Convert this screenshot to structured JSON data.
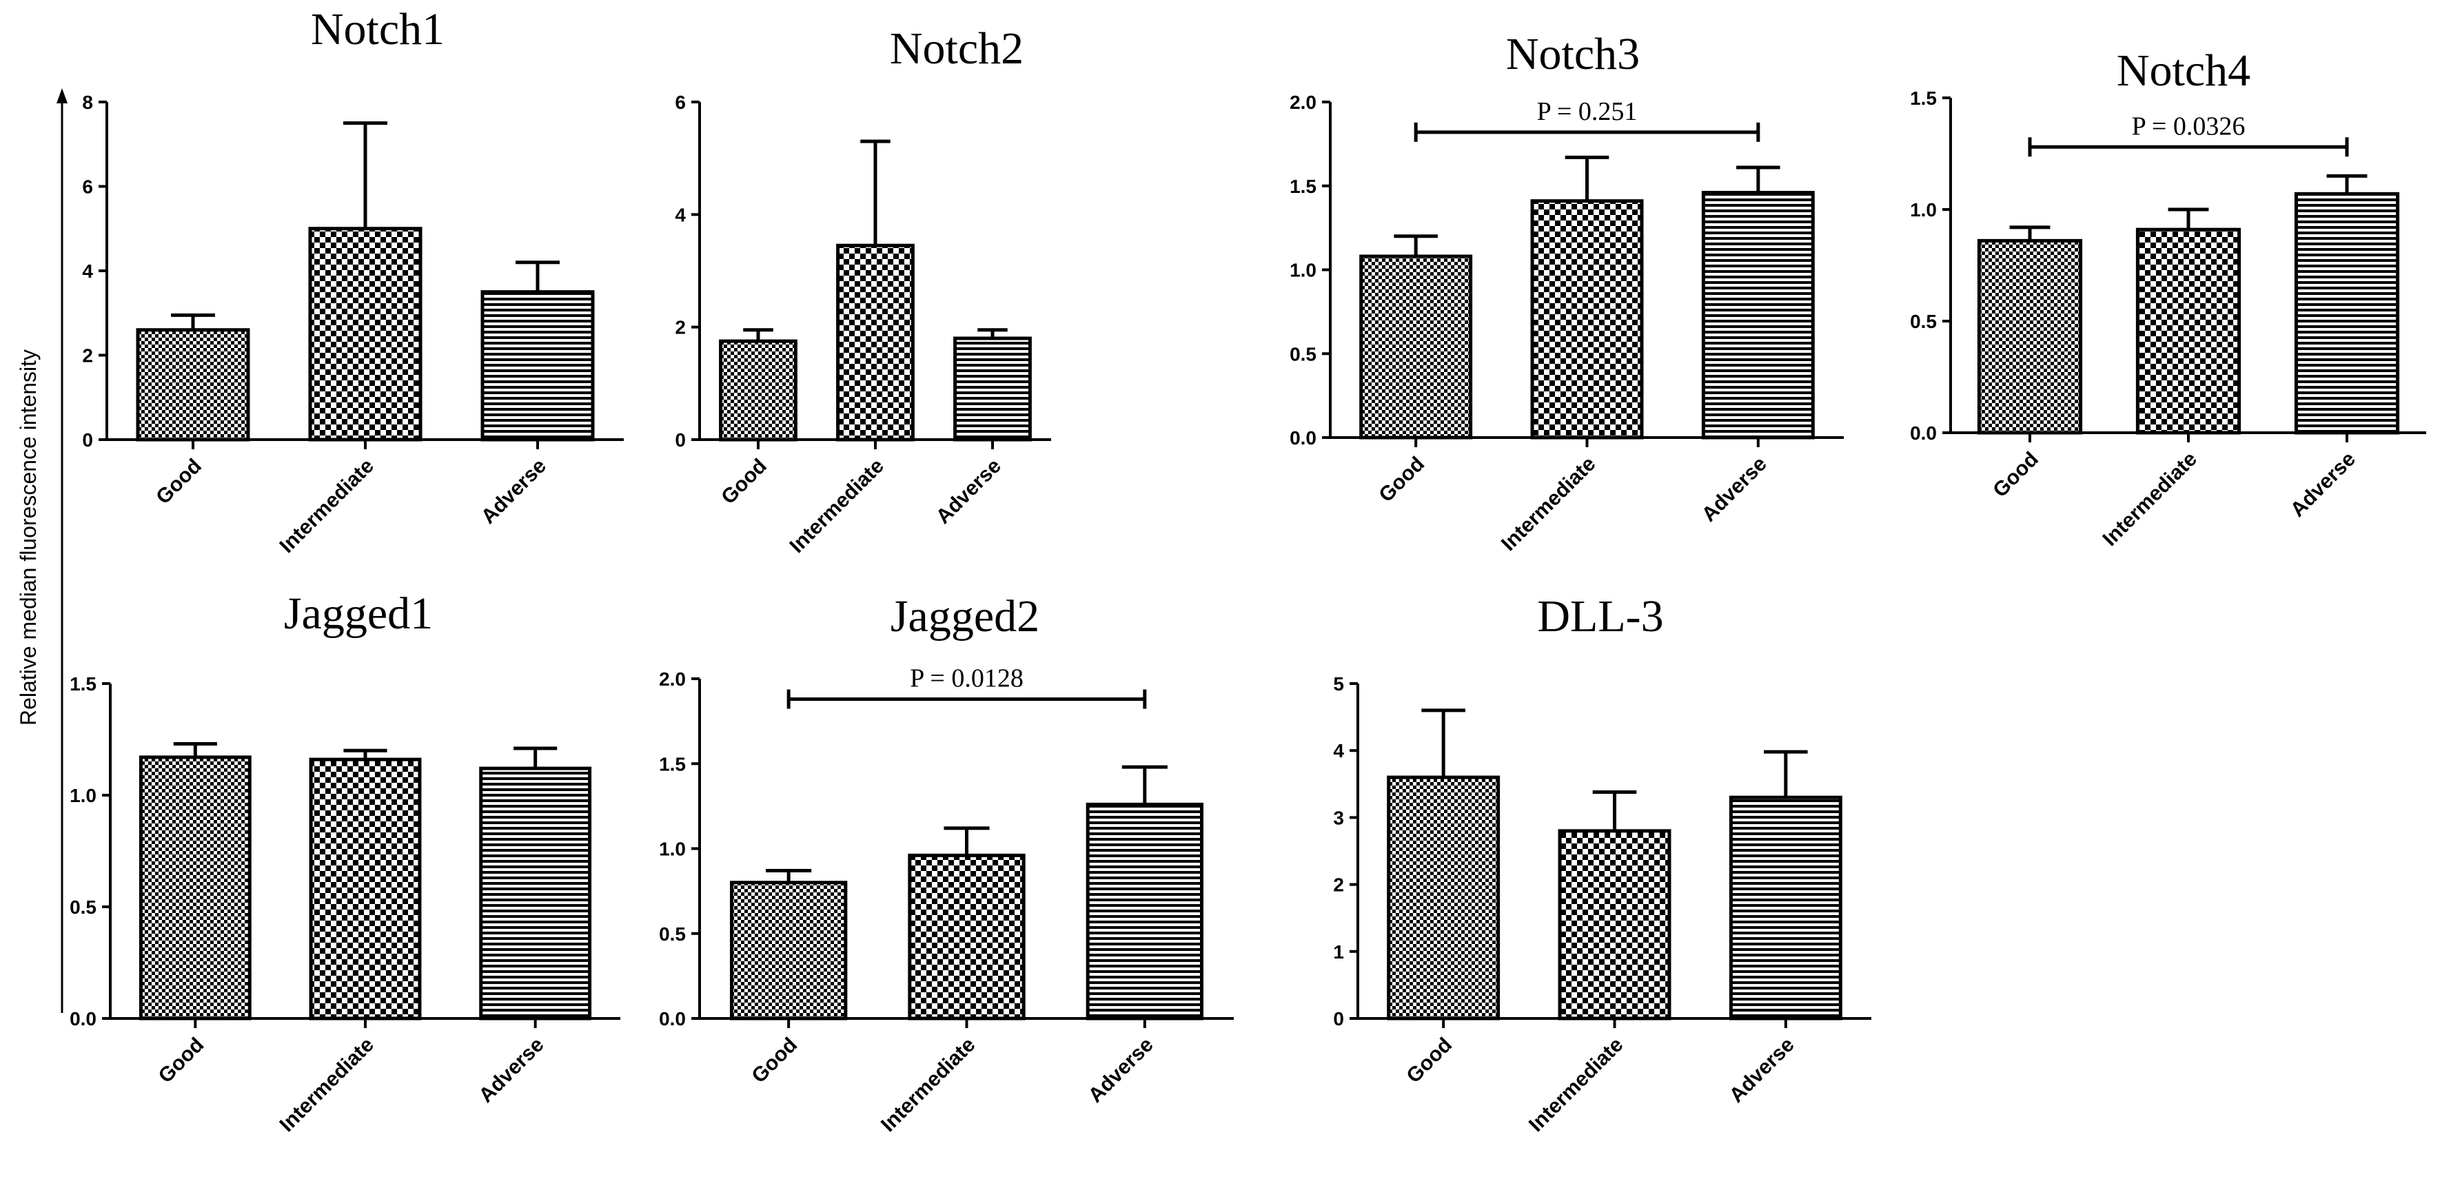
{
  "figure": {
    "ylabel": "Relative median fluorescence intensity"
  },
  "chart_data": [
    {
      "type": "bar",
      "title": "Notch1",
      "categories": [
        "Good",
        "Intermediate",
        "Adverse"
      ],
      "values": [
        2.6,
        5.0,
        3.5
      ],
      "errors": [
        0.35,
        2.5,
        0.7
      ],
      "ylim": [
        0,
        8
      ],
      "yticks": [
        "0",
        "2",
        "4",
        "6",
        "8"
      ],
      "yticks_values": [
        0,
        2,
        4,
        6,
        8
      ],
      "bracket": null
    },
    {
      "type": "bar",
      "title": "Notch2",
      "categories": [
        "Good",
        "Intermediate",
        "Adverse"
      ],
      "values": [
        1.75,
        3.45,
        1.8
      ],
      "errors": [
        0.2,
        1.85,
        0.15
      ],
      "ylim": [
        0,
        6
      ],
      "yticks": [
        "0",
        "2",
        "4",
        "6"
      ],
      "yticks_values": [
        0,
        2,
        4,
        6
      ],
      "bracket": null
    },
    {
      "type": "bar",
      "title": "Notch3",
      "categories": [
        "Good",
        "Intermediate",
        "Adverse"
      ],
      "values": [
        1.08,
        1.41,
        1.46
      ],
      "errors": [
        0.12,
        0.26,
        0.15
      ],
      "ylim": [
        0,
        2.0
      ],
      "yticks": [
        "0.0",
        "0.5",
        "1.0",
        "1.5",
        "2.0"
      ],
      "yticks_values": [
        0,
        0.5,
        1.0,
        1.5,
        2.0
      ],
      "bracket": {
        "label": "P = 0.251",
        "from": 0,
        "to": 2,
        "y": 1.82
      }
    },
    {
      "type": "bar",
      "title": "Notch4",
      "categories": [
        "Good",
        "Intermediate",
        "Adverse"
      ],
      "values": [
        0.86,
        0.91,
        1.07
      ],
      "errors": [
        0.06,
        0.09,
        0.08
      ],
      "ylim": [
        0,
        1.5
      ],
      "yticks": [
        "0.0",
        "0.5",
        "1.0",
        "1.5"
      ],
      "yticks_values": [
        0,
        0.5,
        1.0,
        1.5
      ],
      "bracket": {
        "label": "P = 0.0326",
        "from": 0,
        "to": 2,
        "y": 1.28
      }
    },
    {
      "type": "bar",
      "title": "Jagged1",
      "categories": [
        "Good",
        "Intermediate",
        "Adverse"
      ],
      "values": [
        1.17,
        1.16,
        1.12
      ],
      "errors": [
        0.06,
        0.04,
        0.09
      ],
      "ylim": [
        0,
        1.5
      ],
      "yticks": [
        "0.0",
        "0.5",
        "1.0",
        "1.5"
      ],
      "yticks_values": [
        0,
        0.5,
        1.0,
        1.5
      ],
      "bracket": null
    },
    {
      "type": "bar",
      "title": "Jagged2",
      "categories": [
        "Good",
        "Intermediate",
        "Adverse"
      ],
      "values": [
        0.8,
        0.96,
        1.26
      ],
      "errors": [
        0.07,
        0.16,
        0.22
      ],
      "ylim": [
        0,
        2.0
      ],
      "yticks": [
        "0.0",
        "0.5",
        "1.0",
        "1.5",
        "2.0"
      ],
      "yticks_values": [
        0,
        0.5,
        1.0,
        1.5,
        2.0
      ],
      "bracket": {
        "label": "P = 0.0128",
        "from": 0,
        "to": 2,
        "y": 1.88
      }
    },
    {
      "type": "bar",
      "title": "DLL-3",
      "categories": [
        "Good",
        "Intermediate",
        "Adverse"
      ],
      "values": [
        3.6,
        2.8,
        3.3
      ],
      "errors": [
        1.0,
        0.58,
        0.68
      ],
      "ylim": [
        0,
        5
      ],
      "yticks": [
        "0",
        "1",
        "2",
        "3",
        "4",
        "5"
      ],
      "yticks_values": [
        0,
        1,
        2,
        3,
        4,
        5
      ],
      "bracket": null
    }
  ]
}
